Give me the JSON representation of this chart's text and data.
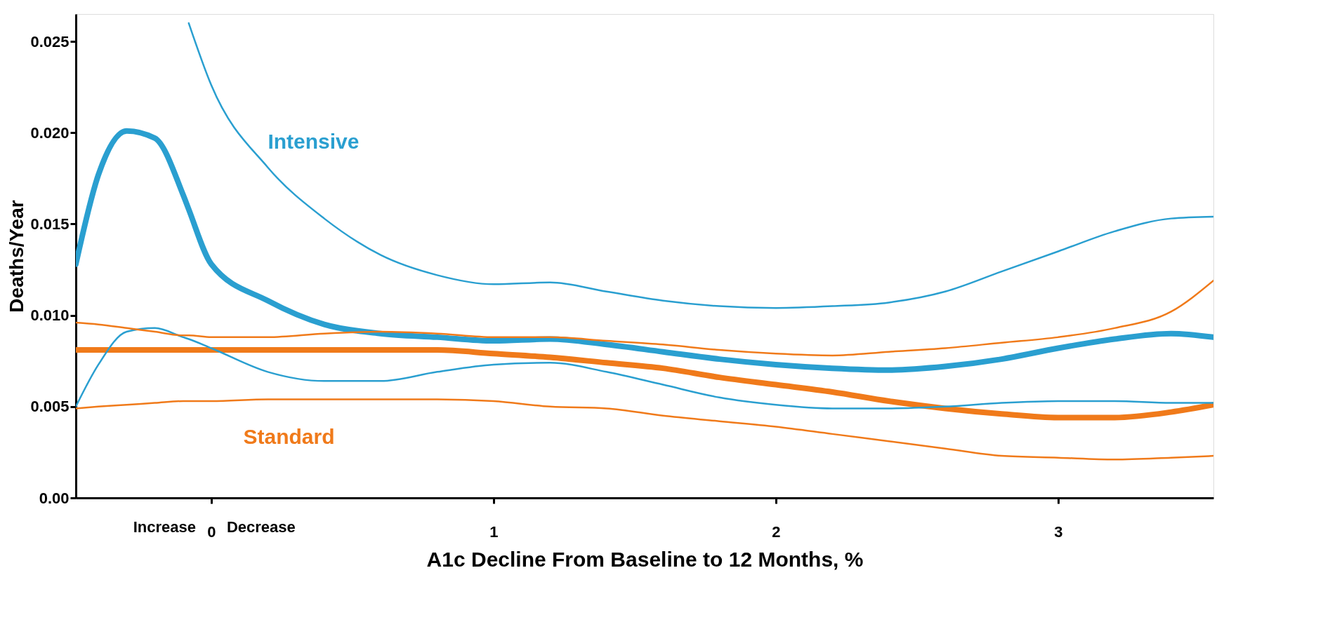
{
  "chart_data": {
    "type": "line",
    "xlabel": "A1c Decline From Baseline to 12 Months, %",
    "ylabel": "Deaths/Year",
    "x": [
      -0.48,
      -0.4,
      -0.3,
      -0.2,
      -0.1,
      -0.08,
      0,
      0.2,
      0.4,
      0.6,
      0.8,
      1.0,
      1.2,
      1.4,
      1.6,
      1.8,
      2.0,
      2.2,
      2.4,
      2.6,
      2.8,
      3.0,
      3.2,
      3.4,
      3.55
    ],
    "series": [
      {
        "name": "Intensive",
        "color": "#2a9fd0",
        "values": [
          0.0128,
          0.0177,
          0.0201,
          0.0197,
          0.0166,
          0.0158,
          0.0128,
          0.0108,
          0.0095,
          0.009,
          0.0088,
          0.0086,
          0.0087,
          0.0084,
          0.008,
          0.0076,
          0.0073,
          0.0071,
          0.007,
          0.0072,
          0.0076,
          0.0082,
          0.0087,
          0.009,
          0.0088
        ]
      },
      {
        "name": "Standard",
        "color": "#f07a1a",
        "values": [
          0.0081,
          0.0081,
          0.0081,
          0.0081,
          0.0081,
          0.0081,
          0.0081,
          0.0081,
          0.0081,
          0.0081,
          0.0081,
          0.0079,
          0.0077,
          0.0074,
          0.0071,
          0.0066,
          0.0062,
          0.0058,
          0.0053,
          0.0049,
          0.0046,
          0.0044,
          0.0044,
          0.0047,
          0.0051
        ]
      },
      {
        "color": "#2a9fd0",
        "values": [
          null,
          null,
          null,
          null,
          null,
          0.026,
          0.0226,
          0.0181,
          0.0153,
          0.0133,
          0.0122,
          0.0117,
          0.0118,
          0.0113,
          0.0108,
          0.0105,
          0.0104,
          0.0105,
          0.0107,
          0.0113,
          0.0124,
          0.0135,
          0.0146,
          0.0153,
          0.0154
        ]
      },
      {
        "color": "#2a9fd0",
        "values": [
          0.005,
          0.0073,
          0.0091,
          0.0093,
          0.0088,
          0.0087,
          0.0082,
          0.0069,
          0.0064,
          0.0064,
          0.0069,
          0.0073,
          0.0074,
          0.0069,
          0.0062,
          0.0055,
          0.0051,
          0.0049,
          0.0049,
          0.005,
          0.0052,
          0.0053,
          0.0053,
          0.0052,
          0.0052
        ]
      },
      {
        "color": "#f07a1a",
        "values": [
          0.0096,
          0.0095,
          0.0093,
          0.0091,
          0.0089,
          0.0089,
          0.0088,
          0.0088,
          0.009,
          0.0091,
          0.009,
          0.0088,
          0.0088,
          0.0086,
          0.0084,
          0.0081,
          0.0079,
          0.0078,
          0.008,
          0.0082,
          0.0085,
          0.0088,
          0.0093,
          0.0102,
          0.0119
        ]
      },
      {
        "color": "#f07a1a",
        "values": [
          0.0049,
          0.005,
          0.0051,
          0.0052,
          0.0053,
          0.0053,
          0.0053,
          0.0054,
          0.0054,
          0.0054,
          0.0054,
          0.0053,
          0.005,
          0.0049,
          0.0045,
          0.0042,
          0.0039,
          0.0035,
          0.0031,
          0.0027,
          0.0023,
          0.0022,
          0.0021,
          0.0022,
          0.0023
        ]
      }
    ],
    "annotations": [
      "Increase",
      "Decrease"
    ],
    "xlim": [
      -0.48,
      3.55
    ],
    "xticks": [
      0,
      1,
      2,
      3
    ],
    "ylim": [
      0,
      0.0265
    ],
    "yticks": [
      {
        "value": 0,
        "label": "0.00"
      },
      0.005,
      {
        "value": 0.01,
        "label": "0.010"
      },
      0.015,
      {
        "value": 0.02,
        "label": "0.020"
      },
      0.025
    ],
    "grid": false,
    "line_style": "solid"
  }
}
